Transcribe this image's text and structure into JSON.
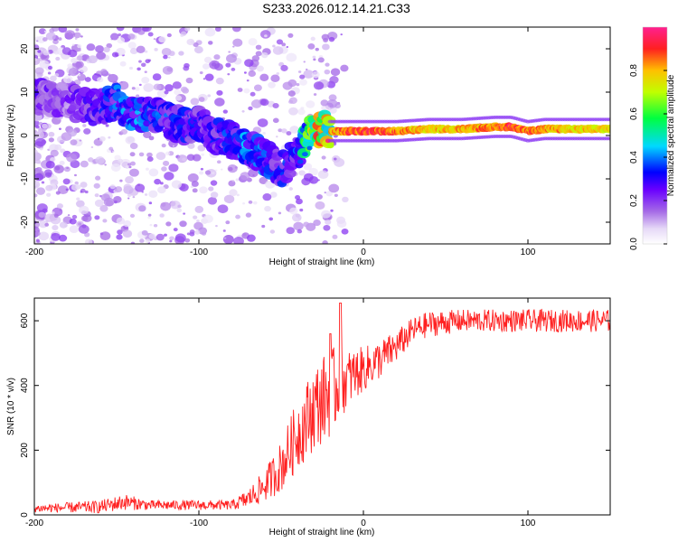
{
  "title": "S233.2026.012.14.21.C33",
  "chart_data": [
    {
      "type": "heatmap",
      "panel": "top",
      "xlabel": "Height of straight line (km)",
      "ylabel": "Frequency (Hz)",
      "xlim": [
        -200,
        150
      ],
      "ylim": [
        -25,
        25
      ],
      "xticks": [
        -200,
        -100,
        0,
        100
      ],
      "xtick_labels": [
        "-200",
        "-100",
        "0",
        "100"
      ],
      "yticks": [
        -20,
        -10,
        0,
        10,
        20
      ],
      "ytick_labels": [
        "-20",
        "-10",
        "0",
        "10",
        "20"
      ],
      "colorbar": {
        "label": "Normalized spectral amplitude",
        "range": [
          0,
          1
        ],
        "ticks": [
          0.0,
          0.2,
          0.4,
          0.6,
          0.8
        ],
        "tick_labels": [
          "0.0",
          "0.2",
          "0.4",
          "0.6",
          "0.8"
        ]
      },
      "ridge": {
        "x": [
          -200,
          -180,
          -160,
          -150,
          -140,
          -130,
          -120,
          -110,
          -100,
          -90,
          -80,
          -70,
          -60,
          -50,
          -40,
          -35,
          -30,
          -25,
          -20,
          -10,
          0,
          10,
          20,
          40,
          60,
          80,
          90,
          100,
          110,
          120,
          130,
          150
        ],
        "y": [
          9,
          8,
          6,
          8,
          5,
          5,
          4,
          2,
          3,
          0,
          -1,
          -3,
          -5,
          -8,
          -4,
          -1,
          1,
          1.5,
          1,
          1,
          1,
          1,
          1,
          1.5,
          1.5,
          2,
          2,
          1,
          1.5,
          1.5,
          1.5,
          1.5
        ],
        "amplitude": [
          0.25,
          0.2,
          0.3,
          0.35,
          0.4,
          0.35,
          0.35,
          0.3,
          0.3,
          0.3,
          0.35,
          0.4,
          0.35,
          0.3,
          0.35,
          0.5,
          0.7,
          0.8,
          0.85,
          0.9,
          0.95,
          0.9,
          0.9,
          0.8,
          0.85,
          0.9,
          0.95,
          0.9,
          0.85,
          0.85,
          0.8,
          0.8
        ]
      }
    },
    {
      "type": "line",
      "panel": "bottom",
      "xlabel": "Height of straight line (km)",
      "ylabel": "SNR (10 * v/v)",
      "xlim": [
        -200,
        150
      ],
      "ylim": [
        0,
        670
      ],
      "xticks": [
        -200,
        -100,
        0,
        100
      ],
      "xtick_labels": [
        "-200",
        "-100",
        "0",
        "100"
      ],
      "yticks": [
        0,
        200,
        400,
        600
      ],
      "ytick_labels": [
        "0",
        "200",
        "400",
        "600"
      ],
      "series": [
        {
          "name": "SNR",
          "color": "#ff2020",
          "envelope_x": [
            -200,
            -160,
            -145,
            -130,
            -100,
            -80,
            -70,
            -60,
            -50,
            -40,
            -30,
            -20,
            -10,
            0,
            10,
            20,
            30,
            40,
            60,
            100,
            150
          ],
          "envelope_y": [
            20,
            25,
            40,
            30,
            30,
            30,
            50,
            90,
            150,
            250,
            330,
            380,
            420,
            450,
            480,
            520,
            570,
            590,
            600,
            600,
            600
          ],
          "noise": [
            12,
            20,
            25,
            15,
            15,
            15,
            30,
            50,
            80,
            110,
            130,
            140,
            90,
            70,
            60,
            50,
            40,
            40,
            35,
            35,
            35
          ]
        }
      ]
    }
  ]
}
